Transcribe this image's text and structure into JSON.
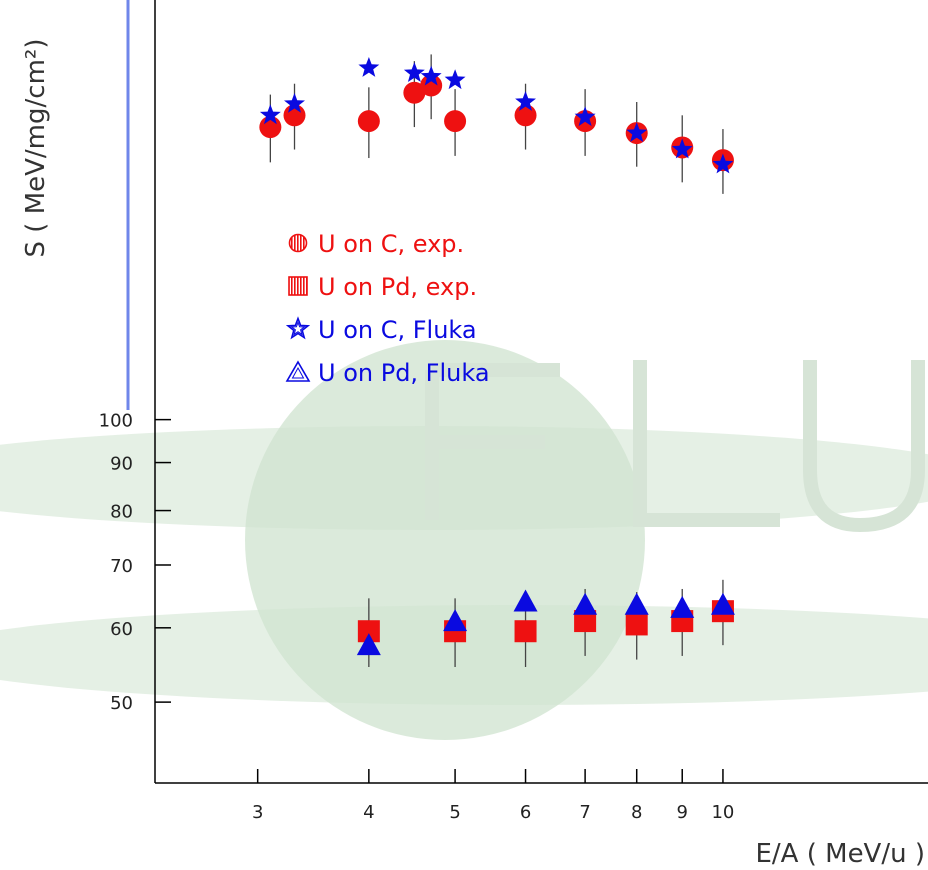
{
  "chart_data": {
    "type": "scatter",
    "x_scale": "log",
    "y_scale": "log",
    "xlabel": "E/A ( MeV/u )",
    "ylabel": "S ( MeV/mg/cm²)",
    "x_ticks": [
      3,
      4,
      5,
      6,
      7,
      8,
      9,
      10
    ],
    "y_ticks": [
      50,
      60,
      70,
      80,
      90,
      100
    ],
    "xlim": [
      2.3,
      17
    ],
    "ylim": [
      41,
      280
    ],
    "watermark": "FLUKA",
    "colors": {
      "exp": "#ee1111",
      "fluka": "#0a0ae0",
      "errbar": "#444444",
      "watermark": "#cfe3cf"
    },
    "series": [
      {
        "name": "U on C, exp.",
        "marker": "circle",
        "color": "#ee1111",
        "points": [
          {
            "x": 3.1,
            "y": 205,
            "err": [
              17,
              17
            ]
          },
          {
            "x": 3.3,
            "y": 211,
            "err": [
              17,
              17
            ]
          },
          {
            "x": 4.0,
            "y": 208,
            "err": [
              18,
              18
            ]
          },
          {
            "x": 4.5,
            "y": 223,
            "err": [
              18,
              18
            ]
          },
          {
            "x": 4.7,
            "y": 227,
            "err": [
              18,
              18
            ]
          },
          {
            "x": 5.0,
            "y": 208,
            "err": [
              17,
              17
            ]
          },
          {
            "x": 6.0,
            "y": 211,
            "err": [
              17,
              17
            ]
          },
          {
            "x": 7.0,
            "y": 208,
            "err": [
              17,
              17
            ]
          },
          {
            "x": 8.0,
            "y": 202,
            "err": [
              16,
              16
            ]
          },
          {
            "x": 9.0,
            "y": 195,
            "err": [
              16,
              16
            ]
          },
          {
            "x": 10.0,
            "y": 189,
            "err": [
              15,
              15
            ]
          }
        ]
      },
      {
        "name": "U on Pd, exp.",
        "marker": "square",
        "color": "#ee1111",
        "points": [
          {
            "x": 4.0,
            "y": 59.5,
            "err": [
              5,
              5
            ]
          },
          {
            "x": 5.0,
            "y": 59.5,
            "err": [
              5,
              5
            ]
          },
          {
            "x": 6.0,
            "y": 59.5,
            "err": [
              5,
              5
            ]
          },
          {
            "x": 7.0,
            "y": 61,
            "err": [
              5,
              5
            ]
          },
          {
            "x": 8.0,
            "y": 60.5,
            "err": [
              5,
              5
            ]
          },
          {
            "x": 9.0,
            "y": 61,
            "err": [
              5,
              5
            ]
          },
          {
            "x": 10.0,
            "y": 62.5,
            "err": [
              5,
              5
            ]
          }
        ]
      },
      {
        "name": "U on C, Fluka",
        "marker": "star",
        "color": "#0a0ae0",
        "points": [
          {
            "x": 3.1,
            "y": 211
          },
          {
            "x": 3.3,
            "y": 217
          },
          {
            "x": 4.0,
            "y": 237
          },
          {
            "x": 4.5,
            "y": 234
          },
          {
            "x": 4.7,
            "y": 232
          },
          {
            "x": 5.0,
            "y": 230
          },
          {
            "x": 6.0,
            "y": 218
          },
          {
            "x": 7.0,
            "y": 210
          },
          {
            "x": 8.0,
            "y": 202
          },
          {
            "x": 9.0,
            "y": 194
          },
          {
            "x": 10.0,
            "y": 187
          }
        ]
      },
      {
        "name": "U on Pd, Fluka",
        "marker": "triangle",
        "color": "#0a0ae0",
        "points": [
          {
            "x": 4.0,
            "y": 57.5
          },
          {
            "x": 5.0,
            "y": 61
          },
          {
            "x": 6.0,
            "y": 64
          },
          {
            "x": 7.0,
            "y": 63.5
          },
          {
            "x": 8.0,
            "y": 63.5
          },
          {
            "x": 9.0,
            "y": 63
          },
          {
            "x": 10.0,
            "y": 63.5
          }
        ]
      }
    ]
  }
}
